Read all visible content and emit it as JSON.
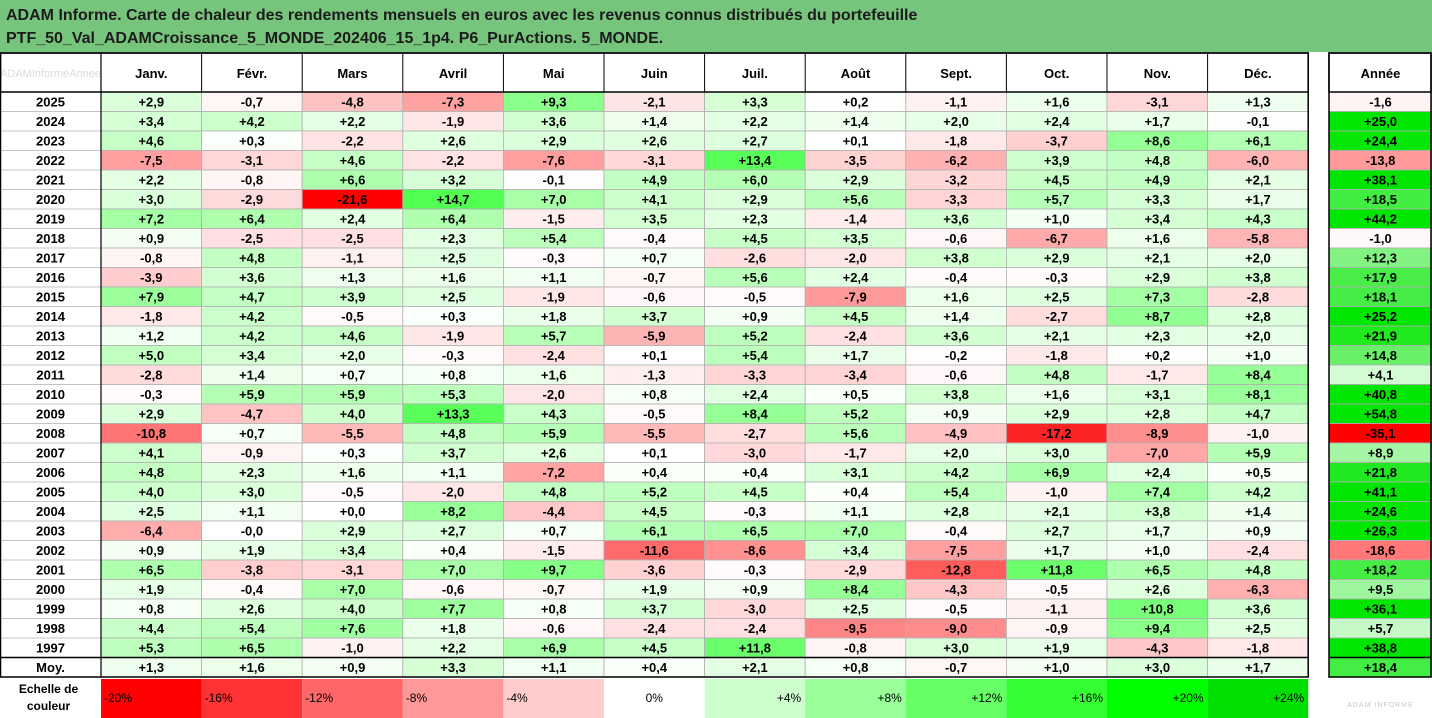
{
  "title_lines": [
    "ADAM Informe. Carte de chaleur des rendements mensuels en euros avec les revenus connus distribués du portefeuille",
    "PTF_50_Val_ADAMCroissance_5_MONDE_202406_15_1p4. P6_PurActions. 5_MONDE."
  ],
  "chart_data": {
    "type": "heatmap",
    "corner_label": "ADAMInformeAnnee",
    "months": [
      "Janv.",
      "Févr.",
      "Mars",
      "Avril",
      "Mai",
      "Juin",
      "Juil.",
      "Août",
      "Sept.",
      "Oct.",
      "Nov.",
      "Déc."
    ],
    "year_header": "Année",
    "rows": [
      {
        "year": "2025",
        "m": [
          "+2,9",
          "-0,7",
          "-4,8",
          "-7,3",
          "+9,3",
          "-2,1",
          "+3,3",
          "+0,2",
          "-1,1",
          "+1,6",
          "-3,1",
          "+1,3"
        ],
        "annual": "-1,6"
      },
      {
        "year": "2024",
        "m": [
          "+3,4",
          "+4,2",
          "+2,2",
          "-1,9",
          "+3,6",
          "+1,4",
          "+2,2",
          "+1,4",
          "+2,0",
          "+2,4",
          "+1,7",
          "-0,1"
        ],
        "annual": "+25,0"
      },
      {
        "year": "2023",
        "m": [
          "+4,6",
          "+0,3",
          "-2,2",
          "+2,6",
          "+2,9",
          "+2,6",
          "+2,7",
          "+0,1",
          "-1,8",
          "-3,7",
          "+8,6",
          "+6,1"
        ],
        "annual": "+24,4"
      },
      {
        "year": "2022",
        "m": [
          "-7,5",
          "-3,1",
          "+4,6",
          "-2,2",
          "-7,6",
          "-3,1",
          "+13,4",
          "-3,5",
          "-6,2",
          "+3,9",
          "+4,8",
          "-6,0"
        ],
        "annual": "-13,8"
      },
      {
        "year": "2021",
        "m": [
          "+2,2",
          "-0,8",
          "+6,6",
          "+3,2",
          "-0,1",
          "+4,9",
          "+6,0",
          "+2,9",
          "-3,2",
          "+4,5",
          "+4,9",
          "+2,1"
        ],
        "annual": "+38,1"
      },
      {
        "year": "2020",
        "m": [
          "+3,0",
          "-2,9",
          "-21,6",
          "+14,7",
          "+7,0",
          "+4,1",
          "+2,9",
          "+5,6",
          "-3,3",
          "+5,7",
          "+3,3",
          "+1,7"
        ],
        "annual": "+18,5"
      },
      {
        "year": "2019",
        "m": [
          "+7,2",
          "+6,4",
          "+2,4",
          "+6,4",
          "-1,5",
          "+3,5",
          "+2,3",
          "-1,4",
          "+3,6",
          "+1,0",
          "+3,4",
          "+4,3"
        ],
        "annual": "+44,2"
      },
      {
        "year": "2018",
        "m": [
          "+0,9",
          "-2,5",
          "-2,5",
          "+2,3",
          "+5,4",
          "-0,4",
          "+4,5",
          "+3,5",
          "-0,6",
          "-6,7",
          "+1,6",
          "-5,8"
        ],
        "annual": "-1,0"
      },
      {
        "year": "2017",
        "m": [
          "-0,8",
          "+4,8",
          "-1,1",
          "+2,5",
          "-0,3",
          "+0,7",
          "-2,6",
          "-2,0",
          "+3,8",
          "+2,9",
          "+2,1",
          "+2,0"
        ],
        "annual": "+12,3"
      },
      {
        "year": "2016",
        "m": [
          "-3,9",
          "+3,6",
          "+1,3",
          "+1,6",
          "+1,1",
          "-0,7",
          "+5,6",
          "+2,4",
          "-0,4",
          "-0,3",
          "+2,9",
          "+3,8"
        ],
        "annual": "+17,9"
      },
      {
        "year": "2015",
        "m": [
          "+7,9",
          "+4,7",
          "+3,9",
          "+2,5",
          "-1,9",
          "-0,6",
          "-0,5",
          "-7,9",
          "+1,6",
          "+2,5",
          "+7,3",
          "-2,8"
        ],
        "annual": "+18,1"
      },
      {
        "year": "2014",
        "m": [
          "-1,8",
          "+4,2",
          "-0,5",
          "+0,3",
          "+1,8",
          "+3,7",
          "+0,9",
          "+4,5",
          "+1,4",
          "-2,7",
          "+8,7",
          "+2,8"
        ],
        "annual": "+25,2"
      },
      {
        "year": "2013",
        "m": [
          "+1,2",
          "+4,2",
          "+4,6",
          "-1,9",
          "+5,7",
          "-5,9",
          "+5,2",
          "-2,4",
          "+3,6",
          "+2,1",
          "+2,3",
          "+2,0"
        ],
        "annual": "+21,9"
      },
      {
        "year": "2012",
        "m": [
          "+5,0",
          "+3,4",
          "+2,0",
          "-0,3",
          "-2,4",
          "+0,1",
          "+5,4",
          "+1,7",
          "-0,2",
          "-1,8",
          "+0,2",
          "+1,0"
        ],
        "annual": "+14,8"
      },
      {
        "year": "2011",
        "m": [
          "-2,8",
          "+1,4",
          "+0,7",
          "+0,8",
          "+1,6",
          "-1,3",
          "-3,3",
          "-3,4",
          "-0,6",
          "+4,8",
          "-1,7",
          "+8,4"
        ],
        "annual": "+4,1"
      },
      {
        "year": "2010",
        "m": [
          "-0,3",
          "+5,9",
          "+5,9",
          "+5,3",
          "-2,0",
          "+0,8",
          "+2,4",
          "+0,5",
          "+3,8",
          "+1,6",
          "+3,1",
          "+8,1"
        ],
        "annual": "+40,8"
      },
      {
        "year": "2009",
        "m": [
          "+2,9",
          "-4,7",
          "+4,0",
          "+13,3",
          "+4,3",
          "-0,5",
          "+8,4",
          "+5,2",
          "+0,9",
          "+2,9",
          "+2,8",
          "+4,7"
        ],
        "annual": "+54,8"
      },
      {
        "year": "2008",
        "m": [
          "-10,8",
          "+0,7",
          "-5,5",
          "+4,8",
          "+5,9",
          "-5,5",
          "-2,7",
          "+5,6",
          "-4,9",
          "-17,2",
          "-8,9",
          "-1,0"
        ],
        "annual": "-35,1"
      },
      {
        "year": "2007",
        "m": [
          "+4,1",
          "-0,9",
          "+0,3",
          "+3,7",
          "+2,6",
          "+0,1",
          "-3,0",
          "-1,7",
          "+2,0",
          "+3,0",
          "-7,0",
          "+5,9"
        ],
        "annual": "+8,9"
      },
      {
        "year": "2006",
        "m": [
          "+4,8",
          "+2,3",
          "+1,6",
          "+1,1",
          "-7,2",
          "+0,4",
          "+0,4",
          "+3,1",
          "+4,2",
          "+6,9",
          "+2,4",
          "+0,5"
        ],
        "annual": "+21,8"
      },
      {
        "year": "2005",
        "m": [
          "+4,0",
          "+3,0",
          "-0,5",
          "-2,0",
          "+4,8",
          "+5,2",
          "+4,5",
          "+0,4",
          "+5,4",
          "-1,0",
          "+7,4",
          "+4,2"
        ],
        "annual": "+41,1"
      },
      {
        "year": "2004",
        "m": [
          "+2,5",
          "+1,1",
          "+0,0",
          "+8,2",
          "-4,4",
          "+4,5",
          "-0,3",
          "+1,1",
          "+2,8",
          "+2,1",
          "+3,8",
          "+1,4"
        ],
        "annual": "+24,6"
      },
      {
        "year": "2003",
        "m": [
          "-6,4",
          "-0,0",
          "+2,9",
          "+2,7",
          "+0,7",
          "+6,1",
          "+6,5",
          "+7,0",
          "-0,4",
          "+2,7",
          "+1,7",
          "+0,9"
        ],
        "annual": "+26,3"
      },
      {
        "year": "2002",
        "m": [
          "+0,9",
          "+1,9",
          "+3,4",
          "+0,4",
          "-1,5",
          "-11,6",
          "-8,6",
          "+3,4",
          "-7,5",
          "+1,7",
          "+1,0",
          "-2,4"
        ],
        "annual": "-18,6"
      },
      {
        "year": "2001",
        "m": [
          "+6,5",
          "-3,8",
          "-3,1",
          "+7,0",
          "+9,7",
          "-3,6",
          "-0,3",
          "-2,9",
          "-12,8",
          "+11,8",
          "+6,5",
          "+4,8"
        ],
        "annual": "+18,2"
      },
      {
        "year": "2000",
        "m": [
          "+1,9",
          "-0,4",
          "+7,0",
          "-0,6",
          "-0,7",
          "+1,9",
          "+0,9",
          "+8,4",
          "-4,3",
          "-0,5",
          "+2,6",
          "-6,3"
        ],
        "annual": "+9,5"
      },
      {
        "year": "1999",
        "m": [
          "+0,8",
          "+2,6",
          "+4,0",
          "+7,7",
          "+0,8",
          "+3,7",
          "-3,0",
          "+2,5",
          "-0,5",
          "-1,1",
          "+10,8",
          "+3,6"
        ],
        "annual": "+36,1"
      },
      {
        "year": "1998",
        "m": [
          "+4,4",
          "+5,4",
          "+7,6",
          "+1,8",
          "-0,6",
          "-2,4",
          "-2,4",
          "-9,5",
          "-9,0",
          "-0,9",
          "+9,4",
          "+2,5"
        ],
        "annual": "+5,7"
      },
      {
        "year": "1997",
        "m": [
          "+5,3",
          "+6,5",
          "-1,0",
          "+2,2",
          "+6,9",
          "+4,5",
          "+11,8",
          "-0,8",
          "+3,0",
          "+1,9",
          "-4,3",
          "-1,8"
        ],
        "annual": "+38,8"
      }
    ],
    "average": {
      "label": "Moy.",
      "m": [
        "+1,3",
        "+1,6",
        "+0,9",
        "+3,3",
        "+1,1",
        "+0,4",
        "+2,1",
        "+0,8",
        "-0,7",
        "+1,0",
        "+3,0",
        "+1,7"
      ],
      "annual": "+18,4"
    },
    "scale_label": [
      "Echelle de",
      "couleur"
    ],
    "scale": [
      {
        "label": "-20%",
        "color": "#ff0000"
      },
      {
        "label": "-16%",
        "color": "#ff3333"
      },
      {
        "label": "-12%",
        "color": "#ff6666"
      },
      {
        "label": "-8%",
        "color": "#ff9999"
      },
      {
        "label": "-4%",
        "color": "#ffcccc"
      },
      {
        "label": "0%",
        "color": "#ffffff"
      },
      {
        "label": "+4%",
        "color": "#ccffcc"
      },
      {
        "label": "+8%",
        "color": "#99ff99"
      },
      {
        "label": "+12%",
        "color": "#66ff66"
      },
      {
        "label": "+16%",
        "color": "#33ff33"
      },
      {
        "label": "+20%",
        "color": "#00ff00"
      },
      {
        "label": "+24%",
        "color": "#00e000"
      }
    ],
    "logo_text": "ADAM INFORME"
  },
  "colors": {
    "title_bg": "#77c57d",
    "grid": "#b0b0b0",
    "frame": "#000000"
  }
}
